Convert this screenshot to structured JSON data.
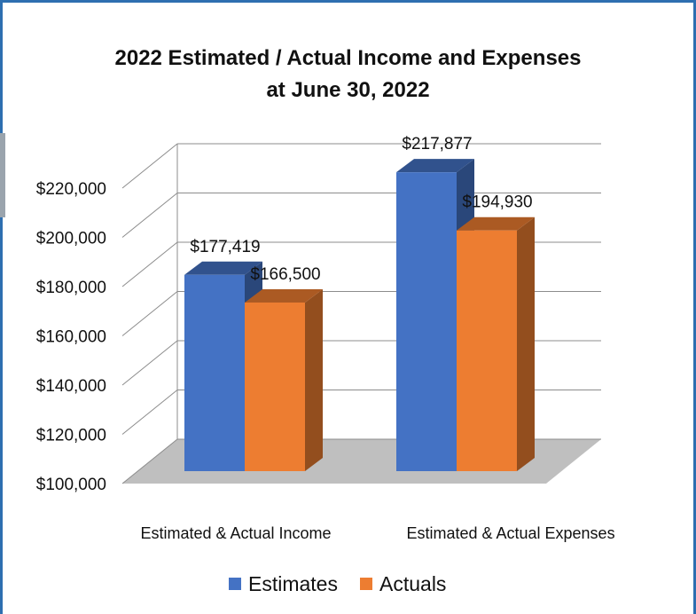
{
  "chart_data": {
    "type": "bar",
    "title": "2022 Estimated / Actual Income and Expenses",
    "subtitle": "at June 30, 2022",
    "categories": [
      "Estimated & Actual Income",
      "Estimated & Actual Expenses"
    ],
    "series": [
      {
        "name": "Estimates",
        "values": [
          177419,
          217877
        ],
        "labels": [
          "$177,419",
          "$217,877"
        ],
        "color": "#4472c4"
      },
      {
        "name": "Actuals",
        "values": [
          166500,
          194930
        ],
        "labels": [
          "$166,500",
          "$194,930"
        ],
        "color": "#ed7d31"
      }
    ],
    "ylim": [
      100000,
      220000
    ],
    "yticks": [
      100000,
      120000,
      140000,
      160000,
      180000,
      200000,
      220000
    ],
    "ytick_labels": [
      "$100,000",
      "$120,000",
      "$140,000",
      "$160,000",
      "$180,000",
      "$200,000",
      "$220,000"
    ],
    "grid": true,
    "style": "3d",
    "legend_position": "bottom"
  }
}
